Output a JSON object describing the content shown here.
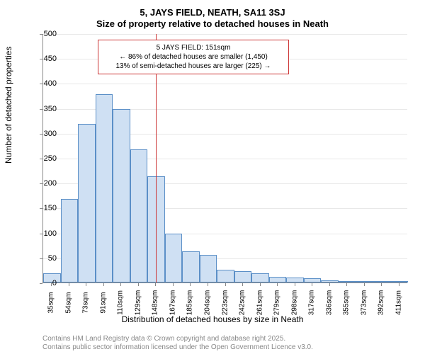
{
  "chart": {
    "type": "histogram",
    "title_line1": "5, JAYS FIELD, NEATH, SA11 3SJ",
    "title_line2": "Size of property relative to detached houses in Neath",
    "ylabel": "Number of detached properties",
    "xlabel": "Distribution of detached houses by size in Neath",
    "background_color": "#ffffff",
    "grid_color": "#e8e8e8",
    "axis_color": "#888888",
    "bar_fill": "#cfe0f3",
    "bar_stroke": "#5b8fc7",
    "reference_color": "#cc3333",
    "ylim": [
      0,
      500
    ],
    "ytick_step": 50,
    "y_ticks": [
      0,
      50,
      100,
      150,
      200,
      250,
      300,
      350,
      400,
      450,
      500
    ],
    "x_ticks": [
      "35sqm",
      "54sqm",
      "73sqm",
      "91sqm",
      "110sqm",
      "129sqm",
      "148sqm",
      "167sqm",
      "185sqm",
      "204sqm",
      "223sqm",
      "242sqm",
      "261sqm",
      "279sqm",
      "298sqm",
      "317sqm",
      "336sqm",
      "355sqm",
      "373sqm",
      "392sqm",
      "411sqm"
    ],
    "bars": [
      18,
      168,
      318,
      378,
      348,
      267,
      213,
      98,
      63,
      55,
      25,
      23,
      18,
      12,
      10,
      8,
      4,
      3,
      2,
      1,
      1
    ],
    "reference_value": 151,
    "x_min": 35,
    "x_max": 411,
    "annotation": {
      "line1": "5 JAYS FIELD: 151sqm",
      "line2": "← 86% of detached houses are smaller (1,450)",
      "line3": "13% of semi-detached houses are larger (225) →"
    },
    "footer_line1": "Contains HM Land Registry data © Crown copyright and database right 2025.",
    "footer_line2": "Contains public sector information licensed under the Open Government Licence v3.0.",
    "title_fontsize": 13,
    "label_fontsize": 12,
    "tick_fontsize": 11,
    "footer_fontsize": 10,
    "footer_color": "#888888"
  }
}
